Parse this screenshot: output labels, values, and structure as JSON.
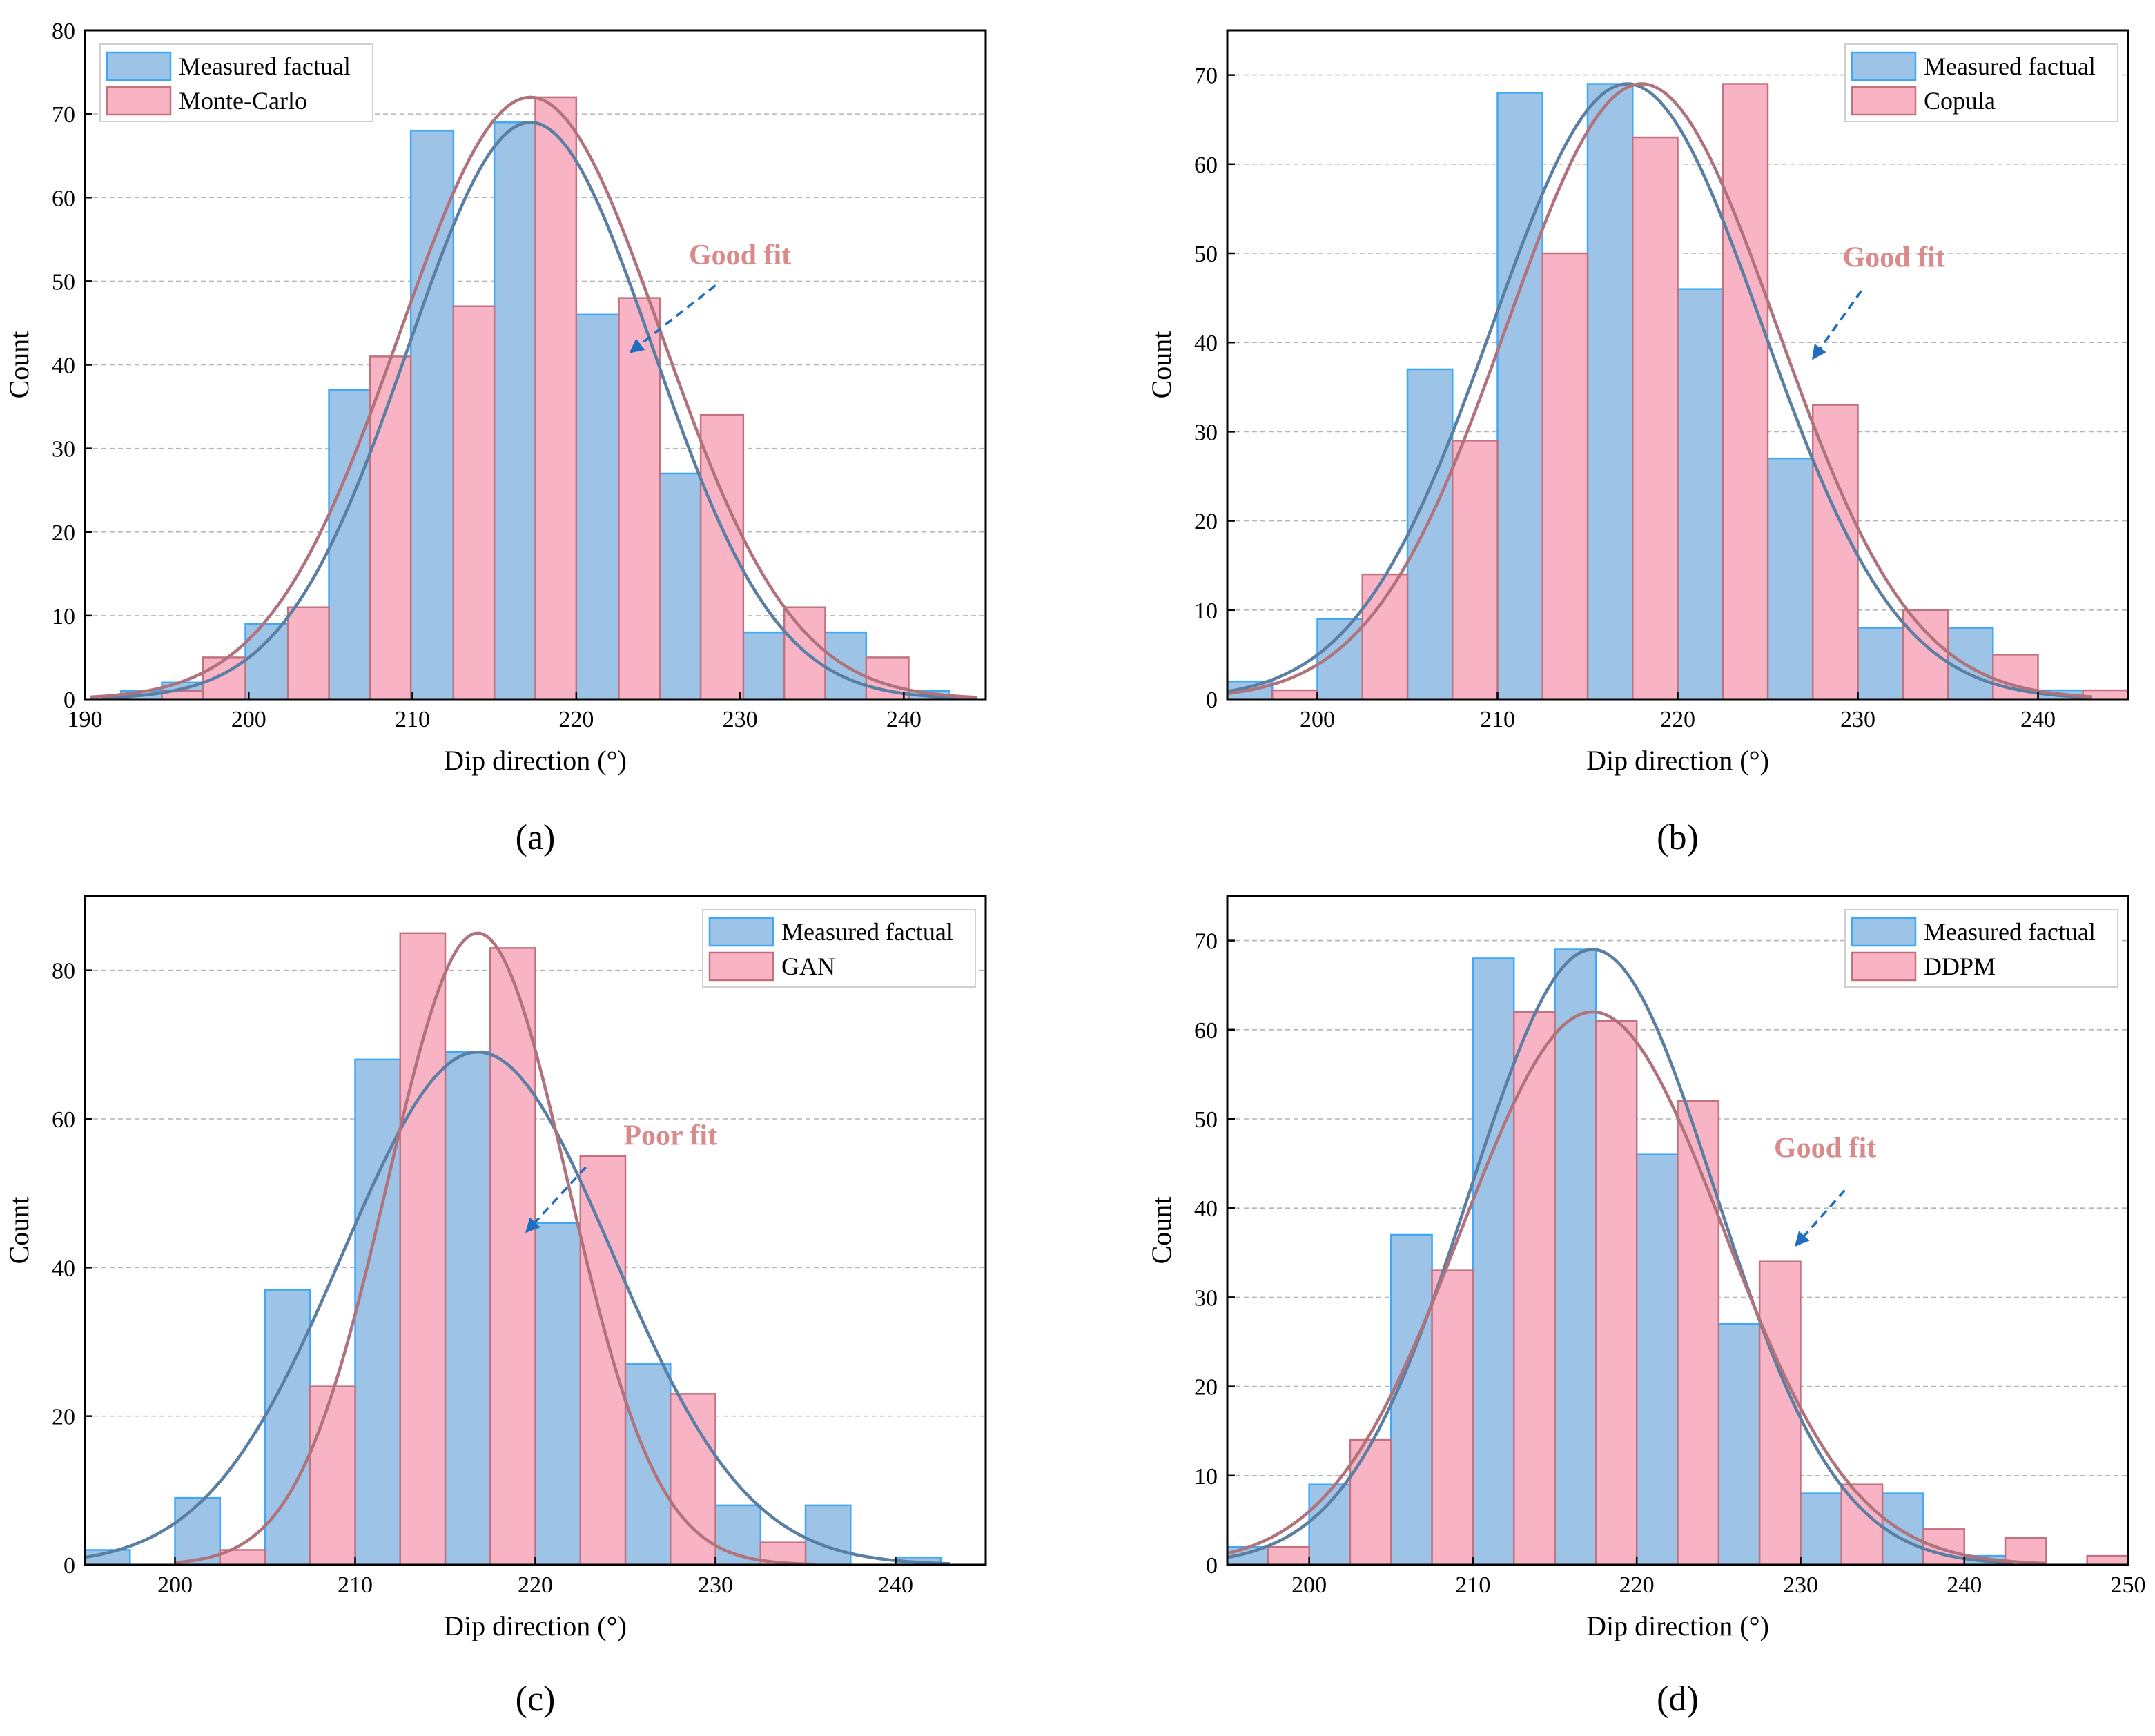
{
  "colors": {
    "measured_fill": "#9dc3e6",
    "measured_edge": "#3fa9f5",
    "sim_fill": "#f8b4c4",
    "sim_edge": "#c0737f",
    "measured_curve": "#5b7ea3",
    "sim_curve": "#b0727b",
    "annotation_text": "#d98a8a",
    "arrow": "#1f6fbf",
    "grid": "#b5b5b5"
  },
  "chart_data": [
    {
      "id": "a",
      "panel_label": "(a)",
      "type": "bar",
      "xlabel": "Dip direction (°)",
      "ylabel": "Count",
      "xlim": [
        190,
        245
      ],
      "ylim": [
        0,
        80
      ],
      "xticks": [
        190,
        200,
        210,
        220,
        230,
        240
      ],
      "yticks": [
        0,
        10,
        20,
        30,
        40,
        50,
        60,
        70,
        80
      ],
      "legend": [
        "Measured factual",
        "Monte-Carlo"
      ],
      "annotation": {
        "text": "Good fit",
        "x_text": 230,
        "y_text": 52,
        "x_from": 228.5,
        "y_from": 49.5,
        "x_to": 223.3,
        "y_to": 41.5
      },
      "series": [
        {
          "name": "Measured factual",
          "bins": [
            [
              192.2,
              194.7,
              1
            ],
            [
              194.7,
              197.2,
              2
            ],
            [
              199.8,
              202.4,
              9
            ],
            [
              204.9,
              207.4,
              37
            ],
            [
              209.9,
              212.5,
              68
            ],
            [
              215.0,
              217.5,
              69
            ],
            [
              220.0,
              222.6,
              46
            ],
            [
              225.1,
              227.6,
              27
            ],
            [
              230.2,
              232.7,
              8
            ],
            [
              235.2,
              237.7,
              8
            ],
            [
              240.3,
              242.8,
              1
            ]
          ],
          "curve": {
            "mean": 217.2,
            "sd": 7.5,
            "peak": 69,
            "from": 191,
            "to": 244
          }
        },
        {
          "name": "Monte-Carlo",
          "bins": [
            [
              194.7,
              197.2,
              1
            ],
            [
              197.2,
              199.8,
              5
            ],
            [
              202.4,
              204.9,
              11
            ],
            [
              207.4,
              209.9,
              41
            ],
            [
              212.5,
              215.0,
              47
            ],
            [
              217.5,
              220.0,
              72
            ],
            [
              222.6,
              225.1,
              48
            ],
            [
              227.6,
              230.2,
              34
            ],
            [
              232.7,
              235.2,
              11
            ],
            [
              237.7,
              240.3,
              5
            ]
          ],
          "curve": {
            "mean": 217.2,
            "sd": 8.0,
            "peak": 72,
            "from": 190.3,
            "to": 244.5
          }
        }
      ]
    },
    {
      "id": "b",
      "panel_label": "(b)",
      "type": "bar",
      "xlabel": "Dip direction (°)",
      "ylabel": "Count",
      "xlim": [
        195,
        245
      ],
      "ylim": [
        0,
        75
      ],
      "xticks": [
        200,
        210,
        220,
        230,
        240
      ],
      "yticks": [
        0,
        10,
        20,
        30,
        40,
        50,
        60,
        70
      ],
      "legend": [
        "Measured factual",
        "Copula"
      ],
      "annotation": {
        "text": "Good fit",
        "x_text": 232,
        "y_text": 48.5,
        "x_from": 230.2,
        "y_from": 45.8,
        "x_to": 227.5,
        "y_to": 38.2
      },
      "series": [
        {
          "name": "Measured factual",
          "bins": [
            [
              195.0,
              197.5,
              2
            ],
            [
              200.0,
              202.5,
              9
            ],
            [
              205.0,
              207.5,
              37
            ],
            [
              210.0,
              212.5,
              68
            ],
            [
              215.0,
              217.5,
              69
            ],
            [
              220.0,
              222.5,
              46
            ],
            [
              225.0,
              227.5,
              27
            ],
            [
              230.0,
              232.5,
              8
            ],
            [
              235.0,
              237.5,
              8
            ],
            [
              240.0,
              242.5,
              1
            ]
          ],
          "curve": {
            "mean": 217.2,
            "sd": 7.5,
            "peak": 69,
            "from": 195,
            "to": 243
          }
        },
        {
          "name": "Copula",
          "bins": [
            [
              197.5,
              200.0,
              1
            ],
            [
              202.5,
              205.0,
              14
            ],
            [
              207.5,
              210.0,
              29
            ],
            [
              212.5,
              215.0,
              50
            ],
            [
              217.5,
              220.0,
              63
            ],
            [
              222.5,
              225.0,
              69
            ],
            [
              227.5,
              230.0,
              33
            ],
            [
              232.5,
              235.0,
              10
            ],
            [
              237.5,
              240.0,
              5
            ],
            [
              242.5,
              245.0,
              1
            ]
          ],
          "curve": {
            "mean": 218.0,
            "sd": 7.5,
            "peak": 69,
            "from": 195,
            "to": 243
          }
        }
      ]
    },
    {
      "id": "c",
      "panel_label": "(c)",
      "type": "bar",
      "xlabel": "Dip direction (°)",
      "ylabel": "Count",
      "xlim": [
        195,
        245
      ],
      "ylim": [
        0,
        90
      ],
      "xticks": [
        200,
        210,
        220,
        230,
        240
      ],
      "yticks": [
        0,
        20,
        40,
        60,
        80
      ],
      "legend": [
        "Measured factual",
        "GAN"
      ],
      "annotation": {
        "text": "Poor fit",
        "x_text": 227.5,
        "y_text": 56.5,
        "x_from": 222.8,
        "y_from": 53.5,
        "x_to": 219.5,
        "y_to": 44.8
      },
      "series": [
        {
          "name": "Measured factual",
          "bins": [
            [
              195.0,
              197.5,
              2
            ],
            [
              200.0,
              202.5,
              9
            ],
            [
              205.0,
              207.5,
              37
            ],
            [
              210.0,
              212.5,
              68
            ],
            [
              215.0,
              217.5,
              69
            ],
            [
              220.0,
              222.5,
              46
            ],
            [
              225.0,
              227.5,
              27
            ],
            [
              230.0,
              232.5,
              8
            ],
            [
              235.0,
              237.5,
              8
            ],
            [
              240.0,
              242.5,
              1
            ]
          ],
          "curve": {
            "mean": 216.8,
            "sd": 7.5,
            "peak": 69,
            "from": 195,
            "to": 243
          }
        },
        {
          "name": "GAN",
          "bins": [
            [
              202.5,
              205.0,
              2
            ],
            [
              207.5,
              210.0,
              24
            ],
            [
              212.5,
              215.0,
              85
            ],
            [
              217.5,
              220.0,
              83
            ],
            [
              222.5,
              225.0,
              55
            ],
            [
              227.5,
              230.0,
              23
            ],
            [
              232.5,
              235.0,
              3
            ]
          ],
          "curve": {
            "mean": 216.8,
            "sd": 5.0,
            "peak": 85,
            "from": 200,
            "to": 235.5
          }
        }
      ]
    },
    {
      "id": "d",
      "panel_label": "(d)",
      "type": "bar",
      "xlabel": "Dip direction (°)",
      "ylabel": "Count",
      "xlim": [
        195,
        250
      ],
      "ylim": [
        0,
        75
      ],
      "xticks": [
        200,
        210,
        220,
        230,
        240,
        250
      ],
      "yticks": [
        0,
        10,
        20,
        30,
        40,
        50,
        60,
        70
      ],
      "legend": [
        "Measured factual",
        "DDPM"
      ],
      "annotation": {
        "text": "Good fit",
        "x_text": 231.5,
        "y_text": 45.7,
        "x_from": 232.7,
        "y_from": 42.0,
        "x_to": 229.7,
        "y_to": 35.8
      },
      "series": [
        {
          "name": "Measured factual",
          "bins": [
            [
              195.0,
              197.5,
              2
            ],
            [
              200.0,
              202.5,
              9
            ],
            [
              205.0,
              207.5,
              37
            ],
            [
              210.0,
              212.5,
              68
            ],
            [
              215.0,
              217.5,
              69
            ],
            [
              220.0,
              222.5,
              46
            ],
            [
              225.0,
              227.5,
              27
            ],
            [
              230.0,
              232.5,
              8
            ],
            [
              235.0,
              237.5,
              8
            ],
            [
              240.0,
              242.5,
              1
            ]
          ],
          "curve": {
            "mean": 217.3,
            "sd": 7.5,
            "peak": 69,
            "from": 195,
            "to": 243
          }
        },
        {
          "name": "DDPM",
          "bins": [
            [
              197.5,
              200.0,
              2
            ],
            [
              202.5,
              205.0,
              14
            ],
            [
              207.5,
              210.0,
              33
            ],
            [
              212.5,
              215.0,
              62
            ],
            [
              217.5,
              220.0,
              61
            ],
            [
              222.5,
              225.0,
              52
            ],
            [
              227.5,
              230.0,
              34
            ],
            [
              232.5,
              235.0,
              9
            ],
            [
              237.5,
              240.0,
              4
            ],
            [
              242.5,
              245.0,
              3
            ],
            [
              247.5,
              250.0,
              1
            ]
          ],
          "curve": {
            "mean": 217.3,
            "sd": 8.0,
            "peak": 62,
            "from": 195,
            "to": 245
          }
        }
      ]
    }
  ]
}
